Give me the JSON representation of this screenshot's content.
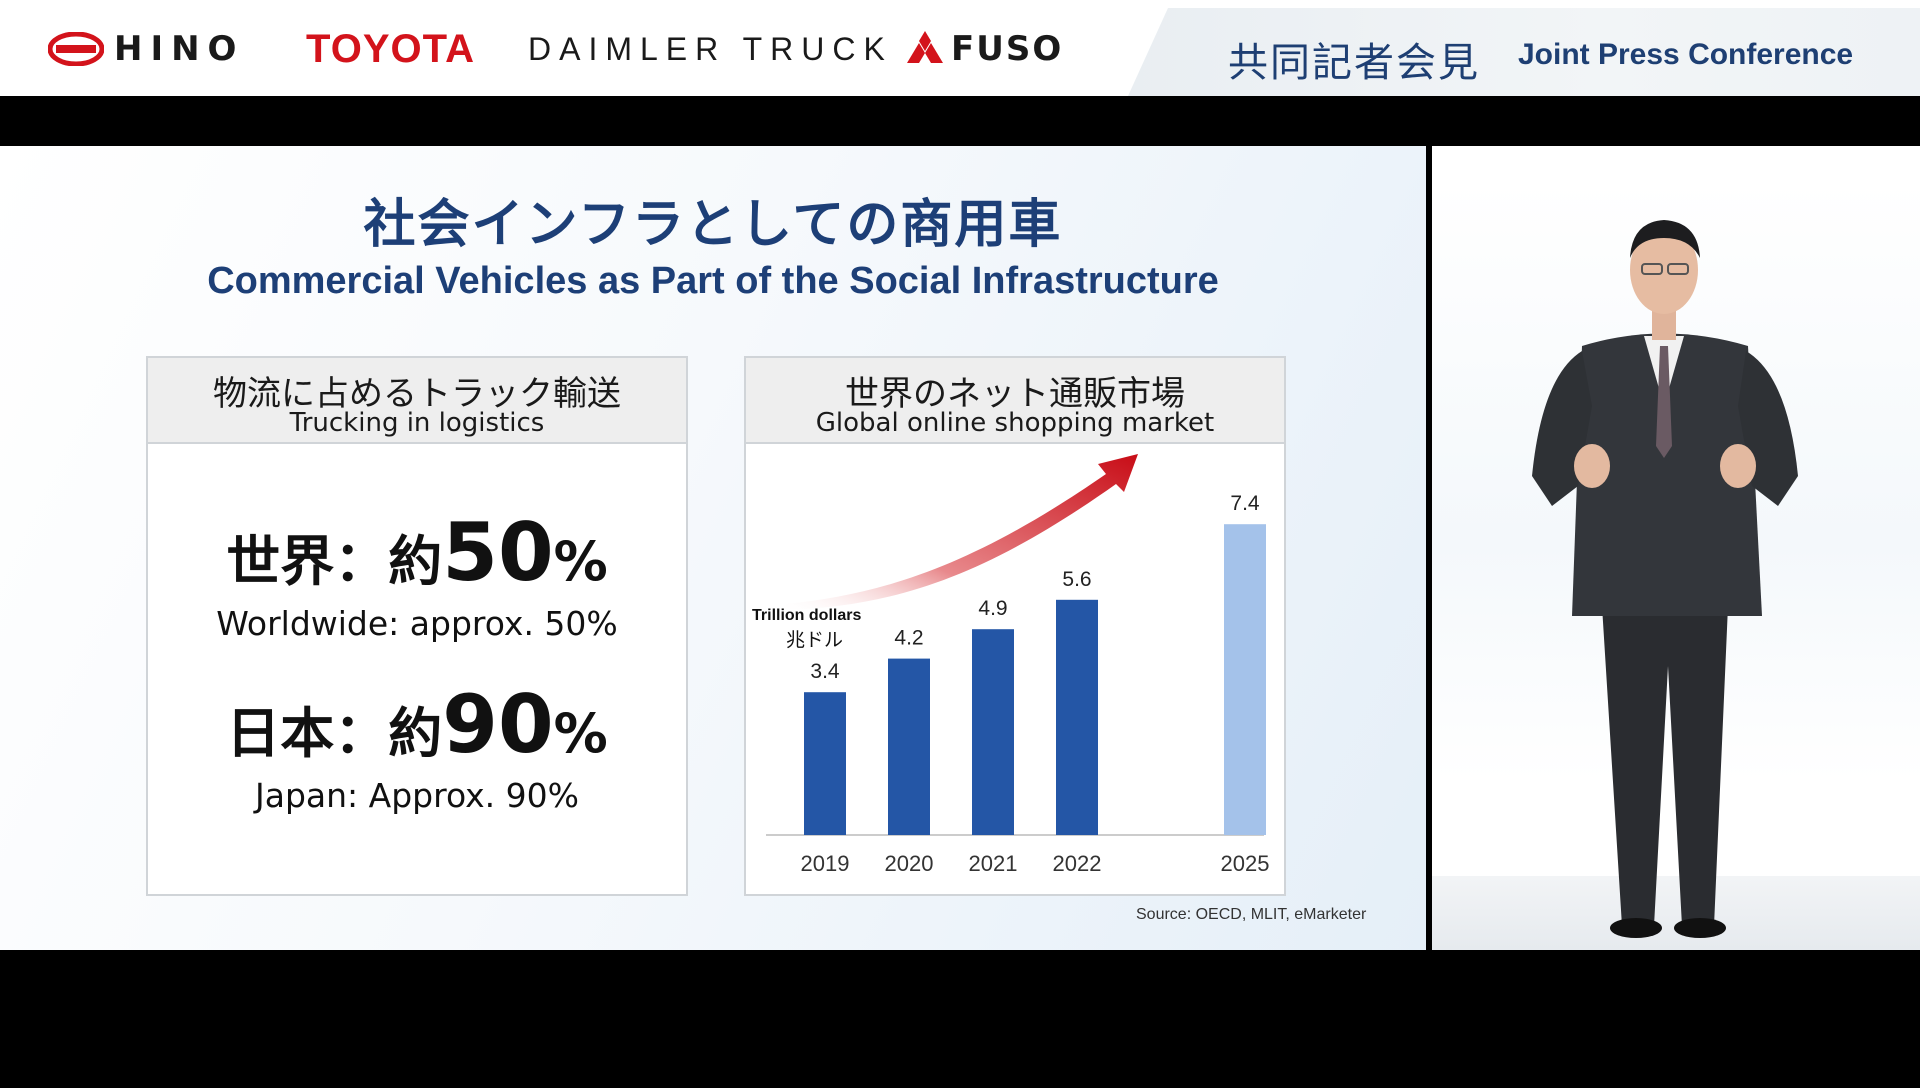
{
  "header": {
    "logos": [
      "HINO",
      "TOYOTA",
      "DAIMLER TRUCK",
      "FUSO"
    ],
    "press_jp": "共同記者会見",
    "press_en": "Joint Press Conference"
  },
  "slide": {
    "title_jp": "社会インフラとしての商用車",
    "title_en": "Commercial Vehicles as Part of the Social Infrastructure",
    "left_panel": {
      "head_jp": "物流に占めるトラック輸送",
      "head_en": "Trucking in logistics",
      "stat1": {
        "label_jp": "世界：約",
        "value": "50",
        "unit": "%",
        "en": "Worldwide: approx. 50%"
      },
      "stat2": {
        "label_jp": "日本：約",
        "value": "90",
        "unit": "%",
        "en": "Japan: Approx. 90%"
      }
    },
    "right_panel": {
      "head_jp": "世界のネット通販市場",
      "head_en": "Global online shopping market"
    },
    "source": "Source: OECD, MLIT, eMarketer"
  },
  "chart_data": {
    "type": "bar",
    "categories": [
      "2019",
      "2020",
      "2021",
      "2022",
      "2025"
    ],
    "values": [
      3.4,
      4.2,
      4.9,
      5.6,
      7.4
    ],
    "unit_en": "Trillion dollars",
    "unit_jp": "兆ドル",
    "ylim": [
      0,
      8
    ],
    "colors": {
      "actual": "#2456a6",
      "forecast": "#a4c2ea",
      "arrow": "#d0121b"
    },
    "arrow": "red upward curved arrow over bars"
  },
  "video": {
    "description_icon": "speaker-figure"
  }
}
